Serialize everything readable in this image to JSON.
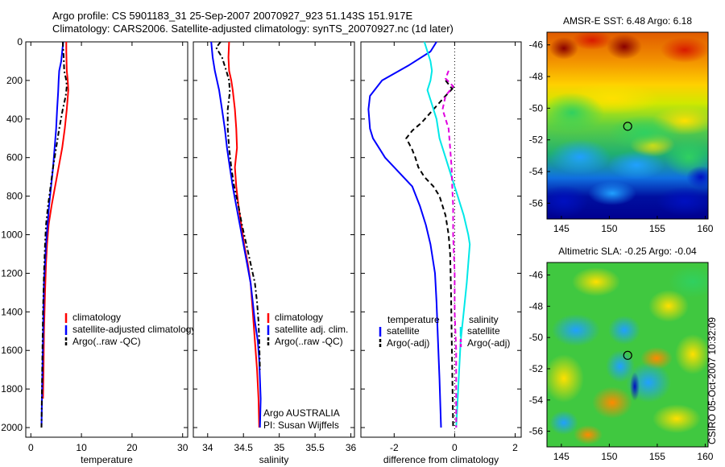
{
  "header": {
    "line1": "Argo profile: CS 5901183_31 25-Sep-2007 20070927_923 51.143S 151.917E",
    "line2": "Climatology: CARS2006. Satellite-adjusted climatology: synTS_20070927.nc (1d later)"
  },
  "side_label": "CSIRO 05-Oct-2007 10:32:09",
  "chart_data": [
    {
      "type": "line",
      "xlabel": "temperature",
      "xlim": [
        -1,
        31
      ],
      "ylim": [
        2050,
        0
      ],
      "xticks": [
        "0",
        "10",
        "20",
        "30"
      ],
      "yticks": [
        "0",
        "200",
        "400",
        "600",
        "800",
        "1000",
        "1200",
        "1400",
        "1600",
        "1800",
        "2000"
      ],
      "legend": [
        "climatology",
        "satellite-adjusted climatology",
        "Argo(..raw -QC)"
      ],
      "series": [
        {
          "name": "climatology",
          "color": "#ff0000",
          "dash": "",
          "points": [
            [
              7.0,
              0
            ],
            [
              7.0,
              50
            ],
            [
              7.1,
              150
            ],
            [
              7.3,
              200
            ],
            [
              7.4,
              250
            ],
            [
              7.1,
              350
            ],
            [
              6.7,
              450
            ],
            [
              6.2,
              550
            ],
            [
              5.5,
              650
            ],
            [
              4.8,
              750
            ],
            [
              4.1,
              850
            ],
            [
              3.5,
              950
            ],
            [
              3.2,
              1050
            ],
            [
              3.0,
              1150
            ],
            [
              2.8,
              1300
            ],
            [
              2.6,
              1500
            ],
            [
              2.5,
              1700
            ],
            [
              2.4,
              1850
            ]
          ]
        },
        {
          "name": "satellite-adjusted climatology",
          "color": "#0000ff",
          "dash": "",
          "points": [
            [
              6.4,
              0
            ],
            [
              6.2,
              50
            ],
            [
              6.0,
              100
            ],
            [
              5.6,
              150
            ],
            [
              5.5,
              200
            ],
            [
              5.4,
              260
            ],
            [
              5.2,
              350
            ],
            [
              5.0,
              450
            ],
            [
              4.7,
              550
            ],
            [
              4.4,
              650
            ],
            [
              4.0,
              750
            ],
            [
              3.6,
              850
            ],
            [
              3.3,
              950
            ],
            [
              3.0,
              1050
            ],
            [
              2.8,
              1150
            ],
            [
              2.6,
              1250
            ],
            [
              2.5,
              1400
            ],
            [
              2.4,
              1550
            ],
            [
              2.3,
              1700
            ],
            [
              2.2,
              1850
            ],
            [
              2.1,
              2000
            ]
          ]
        },
        {
          "name": "Argo(..raw -QC)",
          "color": "#000000",
          "dash": "6,3,2,3",
          "points": [
            [
              6.3,
              0
            ],
            [
              6.5,
              80
            ],
            [
              6.6,
              150
            ],
            [
              7.0,
              200
            ],
            [
              7.1,
              230
            ],
            [
              6.9,
              280
            ],
            [
              6.3,
              350
            ],
            [
              5.6,
              450
            ],
            [
              5.0,
              550
            ],
            [
              4.4,
              650
            ],
            [
              3.9,
              750
            ],
            [
              3.4,
              850
            ],
            [
              3.0,
              950
            ],
            [
              2.8,
              1050
            ],
            [
              2.6,
              1200
            ],
            [
              2.4,
              1400
            ],
            [
              2.3,
              1600
            ],
            [
              2.2,
              1800
            ],
            [
              2.1,
              2000
            ]
          ]
        }
      ]
    },
    {
      "type": "line",
      "xlabel": "salinity",
      "xlim": [
        33.8,
        36.05
      ],
      "ylim": [
        2050,
        0
      ],
      "xticks": [
        "34",
        "34.5",
        "35",
        "35.5",
        "36"
      ],
      "yticks": [],
      "legend": [
        "climatology",
        "satellite adj. clim.",
        "Argo(..raw -QC)"
      ],
      "annotation": [
        "Argo AUSTRALIA",
        "PI: Susan Wijffels"
      ],
      "series": [
        {
          "name": "climatology",
          "color": "#ff0000",
          "dash": "",
          "points": [
            [
              34.3,
              0
            ],
            [
              34.29,
              80
            ],
            [
              34.3,
              150
            ],
            [
              34.33,
              200
            ],
            [
              34.35,
              250
            ],
            [
              34.38,
              350
            ],
            [
              34.4,
              450
            ],
            [
              34.41,
              550
            ],
            [
              34.38,
              650
            ],
            [
              34.4,
              750
            ],
            [
              34.43,
              850
            ],
            [
              34.47,
              950
            ],
            [
              34.51,
              1050
            ],
            [
              34.56,
              1150
            ],
            [
              34.6,
              1250
            ],
            [
              34.63,
              1400
            ],
            [
              34.66,
              1550
            ],
            [
              34.69,
              1700
            ],
            [
              34.71,
              1850
            ],
            [
              34.72,
              2000
            ]
          ]
        },
        {
          "name": "satellite adj. clim.",
          "color": "#0000ff",
          "dash": "",
          "points": [
            [
              34.05,
              0
            ],
            [
              34.07,
              80
            ],
            [
              34.1,
              150
            ],
            [
              34.16,
              250
            ],
            [
              34.2,
              350
            ],
            [
              34.24,
              450
            ],
            [
              34.27,
              550
            ],
            [
              34.31,
              650
            ],
            [
              34.35,
              750
            ],
            [
              34.4,
              850
            ],
            [
              34.45,
              950
            ],
            [
              34.5,
              1050
            ],
            [
              34.55,
              1150
            ],
            [
              34.6,
              1250
            ],
            [
              34.63,
              1350
            ],
            [
              34.66,
              1450
            ],
            [
              34.7,
              1550
            ],
            [
              34.72,
              1650
            ],
            [
              34.73,
              1750
            ],
            [
              34.74,
              1850
            ],
            [
              34.73,
              2000
            ]
          ]
        },
        {
          "name": "Argo(..raw -QC)",
          "color": "#000000",
          "dash": "6,3,2,3",
          "points": [
            [
              34.18,
              0
            ],
            [
              34.12,
              30
            ],
            [
              34.2,
              80
            ],
            [
              34.26,
              150
            ],
            [
              34.3,
              200
            ],
            [
              34.31,
              260
            ],
            [
              34.28,
              350
            ],
            [
              34.28,
              450
            ],
            [
              34.3,
              550
            ],
            [
              34.33,
              650
            ],
            [
              34.37,
              750
            ],
            [
              34.43,
              850
            ],
            [
              34.48,
              950
            ],
            [
              34.54,
              1050
            ],
            [
              34.6,
              1150
            ],
            [
              34.66,
              1250
            ],
            [
              34.69,
              1350
            ],
            [
              34.71,
              1450
            ],
            [
              34.72,
              1550
            ],
            [
              34.73,
              1700
            ]
          ]
        }
      ]
    },
    {
      "type": "line",
      "xlabel": "difference from climatology",
      "xlim": [
        -3.1,
        2.2
      ],
      "ylim": [
        2050,
        0
      ],
      "xticks": [
        "-2",
        "0",
        "2"
      ],
      "yticks": [],
      "zero_line": 0,
      "legend_left_title": "temperature",
      "legend_right_title": "salinity",
      "legend": [
        "satellite",
        "Argo(-adj)",
        "satellite",
        "Argo(-adj)"
      ],
      "series": [
        {
          "name": "temperature satellite",
          "color": "#0000ff",
          "dash": "",
          "points": [
            [
              -0.6,
              0
            ],
            [
              -0.8,
              50
            ],
            [
              -1.5,
              120
            ],
            [
              -2.4,
              200
            ],
            [
              -2.8,
              280
            ],
            [
              -2.85,
              350
            ],
            [
              -2.8,
              450
            ],
            [
              -2.7,
              500
            ],
            [
              -2.5,
              550
            ],
            [
              -2.3,
              600
            ],
            [
              -2.0,
              650
            ],
            [
              -1.7,
              700
            ],
            [
              -1.4,
              750
            ],
            [
              -1.15,
              850
            ],
            [
              -0.95,
              950
            ],
            [
              -0.8,
              1050
            ],
            [
              -0.65,
              1200
            ],
            [
              -0.6,
              1350
            ],
            [
              -0.55,
              1550
            ],
            [
              -0.5,
              1750
            ],
            [
              -0.45,
              2000
            ]
          ]
        },
        {
          "name": "temperature Argo(-adj)",
          "color": "#000000",
          "dash": "6,4",
          "points": [
            [
              -0.3,
              200
            ],
            [
              -0.2,
              220
            ],
            [
              -0.1,
              240
            ],
            [
              0.0,
              230
            ],
            [
              -0.3,
              280
            ],
            [
              -0.7,
              350
            ],
            [
              -1.1,
              420
            ],
            [
              -1.4,
              460
            ],
            [
              -1.6,
              500
            ],
            [
              -1.5,
              530
            ],
            [
              -1.4,
              560
            ],
            [
              -1.3,
              600
            ],
            [
              -1.2,
              650
            ],
            [
              -1.0,
              700
            ],
            [
              -0.7,
              750
            ],
            [
              -0.5,
              800
            ],
            [
              -0.3,
              900
            ],
            [
              -0.2,
              1000
            ],
            [
              -0.15,
              1100
            ],
            [
              -0.12,
              1300
            ],
            [
              -0.1,
              1500
            ],
            [
              -0.08,
              1700
            ],
            [
              -0.05,
              2000
            ]
          ]
        },
        {
          "name": "salinity satellite",
          "color": "#00e8e8",
          "dash": "",
          "points": [
            [
              -1.0,
              0
            ],
            [
              -0.9,
              50
            ],
            [
              -0.8,
              100
            ],
            [
              -0.75,
              150
            ],
            [
              -0.8,
              200
            ],
            [
              -0.9,
              250
            ],
            [
              -0.8,
              300
            ],
            [
              -0.6,
              400
            ],
            [
              -0.5,
              500
            ],
            [
              -0.3,
              600
            ],
            [
              -0.1,
              700
            ],
            [
              0.1,
              800
            ],
            [
              0.3,
              900
            ],
            [
              0.45,
              1000
            ],
            [
              0.5,
              1050
            ],
            [
              0.45,
              1150
            ],
            [
              0.4,
              1250
            ],
            [
              0.3,
              1400
            ],
            [
              0.2,
              1550
            ],
            [
              0.15,
              1700
            ],
            [
              0.1,
              1850
            ],
            [
              0.05,
              2000
            ]
          ]
        },
        {
          "name": "salinity Argo(-adj)",
          "color": "#e000e0",
          "dash": "6,4",
          "points": [
            [
              -0.2,
              150
            ],
            [
              -0.3,
              190
            ],
            [
              -0.05,
              230
            ],
            [
              -0.3,
              280
            ],
            [
              -0.4,
              350
            ],
            [
              -0.3,
              400
            ],
            [
              -0.2,
              450
            ],
            [
              -0.15,
              550
            ],
            [
              -0.1,
              650
            ],
            [
              -0.08,
              750
            ],
            [
              -0.05,
              850
            ],
            [
              -0.05,
              1000
            ],
            [
              0.0,
              1200
            ],
            [
              0.0,
              1400
            ],
            [
              0.05,
              1600
            ],
            [
              0.05,
              1800
            ],
            [
              0.05,
              2000
            ]
          ]
        }
      ]
    },
    {
      "type": "heatmap",
      "title": "AMSR-E SST: 6.48 Argo: 6.18",
      "xticks": [
        "145",
        "150",
        "155",
        "160"
      ],
      "yticks": [
        "-46",
        "-48",
        "-50",
        "-52",
        "-54",
        "-56"
      ],
      "marker": {
        "lon": 151.917,
        "lat": -51.143
      }
    },
    {
      "type": "heatmap",
      "title": "Altimetric SLA: -0.25 Argo: -0.04",
      "xticks": [
        "145",
        "150",
        "155",
        "160"
      ],
      "yticks": [
        "-46",
        "-48",
        "-50",
        "-52",
        "-54",
        "-56"
      ],
      "marker": {
        "lon": 151.917,
        "lat": -51.143
      }
    }
  ]
}
